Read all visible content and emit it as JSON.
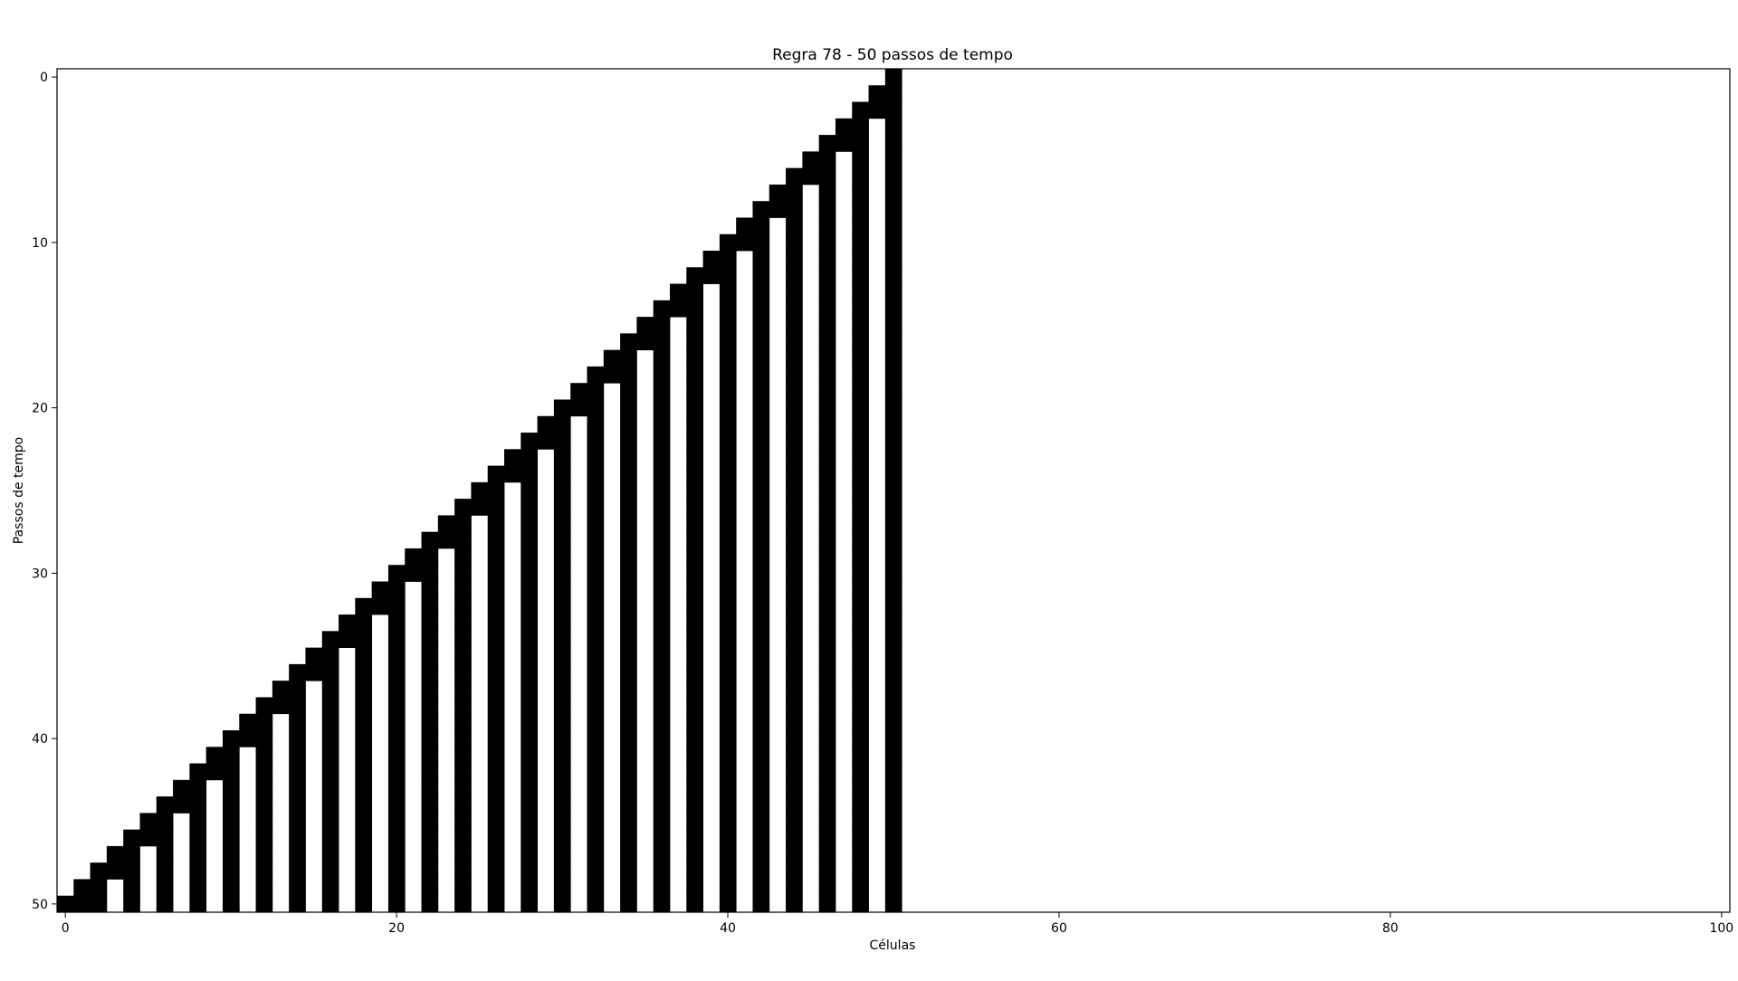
{
  "chart_data": {
    "type": "heatmap",
    "title": "Regra 78 - 50 passos de tempo",
    "xlabel": "Células",
    "ylabel": "Passos de tempo",
    "rule": 78,
    "steps": 50,
    "width": 101,
    "start_cell": 50,
    "xlim": [
      -0.5,
      100.5
    ],
    "ylim": [
      50.5,
      -0.5
    ],
    "xticks": [
      0,
      20,
      40,
      60,
      80,
      100
    ],
    "yticks": [
      0,
      10,
      20,
      30,
      40,
      50
    ],
    "colors": {
      "alive": "#000000",
      "dead": "#ffffff"
    },
    "grid": false
  }
}
